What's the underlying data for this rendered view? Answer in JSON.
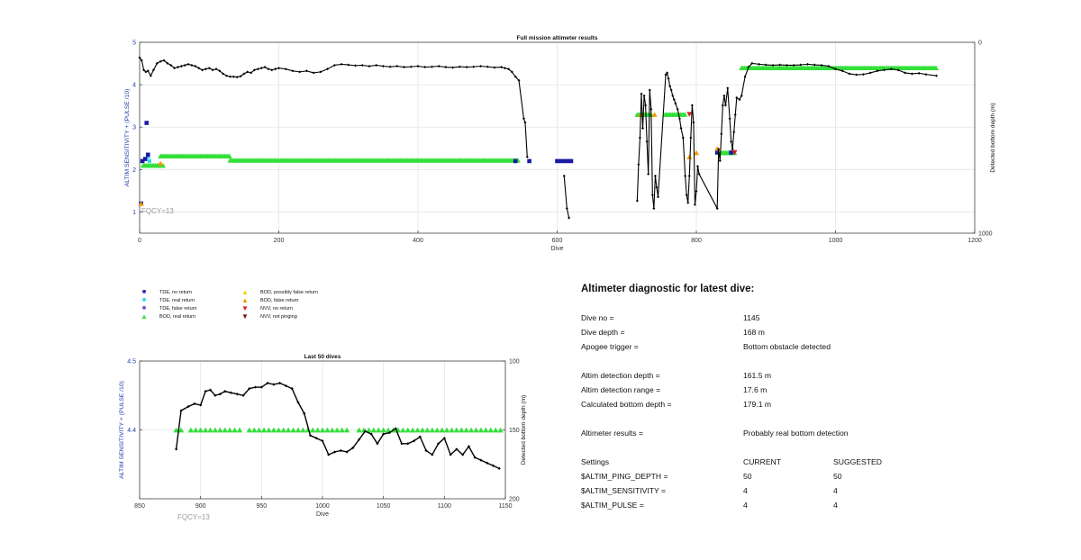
{
  "chart_data": [
    {
      "type": "scatter",
      "title": "Full mission altimeter results",
      "xlabel": "Dive",
      "ylabel": "ALTIM SENSITIVITY + (PULSE /10)",
      "y2label": "Detected bottom depth (m)",
      "xlim": [
        0,
        1200
      ],
      "ylim": [
        0.5,
        5
      ],
      "y2lim": [
        0,
        1000
      ],
      "y2_reversed": true,
      "xticks": [
        "0",
        "200",
        "400",
        "600",
        "800",
        "1000",
        "1200"
      ],
      "yticks": [
        "1",
        "2",
        "3",
        "4",
        "5"
      ],
      "y2ticks": [
        "0",
        "1000"
      ],
      "grid": true,
      "annotation": "FQCY=13",
      "depth_series": [
        [
          0,
          80
        ],
        [
          3,
          95
        ],
        [
          6,
          145
        ],
        [
          9,
          155
        ],
        [
          12,
          150
        ],
        [
          16,
          175
        ],
        [
          20,
          145
        ],
        [
          25,
          110
        ],
        [
          30,
          100
        ],
        [
          35,
          95
        ],
        [
          40,
          110
        ],
        [
          45,
          120
        ],
        [
          50,
          135
        ],
        [
          55,
          130
        ],
        [
          60,
          125
        ],
        [
          65,
          120
        ],
        [
          70,
          115
        ],
        [
          75,
          120
        ],
        [
          80,
          125
        ],
        [
          85,
          135
        ],
        [
          90,
          145
        ],
        [
          95,
          140
        ],
        [
          100,
          135
        ],
        [
          105,
          145
        ],
        [
          110,
          140
        ],
        [
          115,
          150
        ],
        [
          120,
          165
        ],
        [
          125,
          175
        ],
        [
          130,
          180
        ],
        [
          135,
          180
        ],
        [
          140,
          182
        ],
        [
          145,
          178
        ],
        [
          150,
          165
        ],
        [
          155,
          155
        ],
        [
          160,
          160
        ],
        [
          165,
          145
        ],
        [
          170,
          140
        ],
        [
          175,
          135
        ],
        [
          180,
          130
        ],
        [
          185,
          140
        ],
        [
          190,
          145
        ],
        [
          195,
          140
        ],
        [
          200,
          135
        ],
        [
          210,
          140
        ],
        [
          220,
          150
        ],
        [
          230,
          155
        ],
        [
          240,
          150
        ],
        [
          250,
          160
        ],
        [
          260,
          155
        ],
        [
          270,
          140
        ],
        [
          280,
          120
        ],
        [
          290,
          115
        ],
        [
          300,
          118
        ],
        [
          310,
          122
        ],
        [
          320,
          120
        ],
        [
          330,
          125
        ],
        [
          340,
          120
        ],
        [
          350,
          125
        ],
        [
          360,
          128
        ],
        [
          370,
          125
        ],
        [
          380,
          130
        ],
        [
          390,
          128
        ],
        [
          400,
          125
        ],
        [
          410,
          130
        ],
        [
          420,
          128
        ],
        [
          430,
          125
        ],
        [
          440,
          130
        ],
        [
          450,
          132
        ],
        [
          460,
          128
        ],
        [
          470,
          130
        ],
        [
          480,
          128
        ],
        [
          490,
          125
        ],
        [
          500,
          128
        ],
        [
          510,
          132
        ],
        [
          520,
          130
        ],
        [
          525,
          135
        ],
        [
          530,
          140
        ],
        [
          535,
          155
        ],
        [
          540,
          180
        ],
        [
          545,
          200
        ],
        [
          552,
          400
        ],
        [
          554,
          420
        ],
        [
          557,
          600
        ],
        [
          610,
          700
        ],
        [
          614,
          870
        ],
        [
          617,
          920
        ],
        [
          715,
          830
        ],
        [
          717,
          640
        ],
        [
          719,
          500
        ],
        [
          721,
          270
        ],
        [
          723,
          450
        ],
        [
          725,
          280
        ],
        [
          727,
          330
        ],
        [
          729,
          520
        ],
        [
          731,
          690
        ],
        [
          733,
          250
        ],
        [
          735,
          350
        ],
        [
          737,
          800
        ],
        [
          739,
          870
        ],
        [
          741,
          700
        ],
        [
          743,
          760
        ],
        [
          745,
          810
        ],
        [
          756,
          170
        ],
        [
          758,
          160
        ],
        [
          760,
          190
        ],
        [
          762,
          230
        ],
        [
          764,
          250
        ],
        [
          766,
          280
        ],
        [
          768,
          300
        ],
        [
          770,
          320
        ],
        [
          773,
          350
        ],
        [
          776,
          400
        ],
        [
          778,
          450
        ],
        [
          781,
          500
        ],
        [
          784,
          700
        ],
        [
          786,
          800
        ],
        [
          788,
          840
        ],
        [
          790,
          700
        ],
        [
          792,
          500
        ],
        [
          794,
          330
        ],
        [
          796,
          420
        ],
        [
          798,
          850
        ],
        [
          800,
          780
        ],
        [
          802,
          650
        ],
        [
          804,
          690
        ],
        [
          830,
          870
        ],
        [
          832,
          560
        ],
        [
          834,
          620
        ],
        [
          836,
          480
        ],
        [
          838,
          330
        ],
        [
          840,
          280
        ],
        [
          842,
          330
        ],
        [
          845,
          240
        ],
        [
          848,
          400
        ],
        [
          850,
          520
        ],
        [
          852,
          560
        ],
        [
          854,
          470
        ],
        [
          856,
          380
        ],
        [
          858,
          290
        ],
        [
          862,
          300
        ],
        [
          865,
          280
        ],
        [
          870,
          180
        ],
        [
          875,
          130
        ],
        [
          880,
          110
        ],
        [
          890,
          115
        ],
        [
          900,
          118
        ],
        [
          910,
          120
        ],
        [
          920,
          118
        ],
        [
          930,
          120
        ],
        [
          940,
          120
        ],
        [
          950,
          118
        ],
        [
          960,
          115
        ],
        [
          970,
          118
        ],
        [
          980,
          120
        ],
        [
          990,
          125
        ],
        [
          1000,
          140
        ],
        [
          1010,
          150
        ],
        [
          1020,
          165
        ],
        [
          1030,
          170
        ],
        [
          1040,
          168
        ],
        [
          1050,
          160
        ],
        [
          1060,
          150
        ],
        [
          1070,
          145
        ],
        [
          1080,
          140
        ],
        [
          1090,
          145
        ],
        [
          1100,
          160
        ],
        [
          1110,
          165
        ],
        [
          1120,
          162
        ],
        [
          1130,
          168
        ],
        [
          1145,
          175
        ]
      ],
      "markers": {
        "tde_no_return": [
          [
            2,
            1.2
          ],
          [
            4,
            2.2
          ],
          [
            8,
            2.25
          ],
          [
            10,
            3.1
          ],
          [
            12,
            2.35
          ],
          [
            540,
            2.2
          ],
          [
            560,
            2.2
          ],
          [
            600,
            2.2
          ],
          [
            605,
            2.2
          ],
          [
            610,
            2.2
          ],
          [
            615,
            2.2
          ],
          [
            620,
            2.2
          ],
          [
            830,
            2.4
          ],
          [
            850,
            2.4
          ]
        ],
        "tde_real_return": [
          [
            12,
            2.3
          ],
          [
            14,
            2.2
          ]
        ],
        "bod_real_return_bands": [
          {
            "x0": 5,
            "x1": 35,
            "y": 2.1
          },
          {
            "x0": 30,
            "x1": 130,
            "y": 2.32
          },
          {
            "x0": 130,
            "x1": 545,
            "y": 2.22
          },
          {
            "x0": 715,
            "x1": 735,
            "y": 3.3
          },
          {
            "x0": 755,
            "x1": 785,
            "y": 3.3
          },
          {
            "x0": 835,
            "x1": 855,
            "y": 2.4
          },
          {
            "x0": 865,
            "x1": 1145,
            "y": 4.4
          }
        ],
        "bod_false_return": [
          [
            2,
            1.2
          ],
          [
            30,
            2.15
          ],
          [
            720,
            3.3
          ],
          [
            740,
            3.3
          ],
          [
            790,
            2.3
          ],
          [
            800,
            2.4
          ],
          [
            830,
            2.5
          ]
        ],
        "nvv_no_return": [
          [
            790,
            3.3
          ],
          [
            855,
            2.4
          ]
        ]
      }
    },
    {
      "type": "scatter",
      "title": "Last 50 dives",
      "xlabel": "Dive",
      "ylabel": "ALTIM SENSITIVITY + (PULSE /10)",
      "y2label": "Detected bottom depth (m)",
      "xlim": [
        850,
        1150
      ],
      "ylim": [
        4.3,
        4.5
      ],
      "y2lim": [
        100,
        200
      ],
      "y2_reversed": true,
      "xticks": [
        "850",
        "900",
        "950",
        "1000",
        "1050",
        "1100",
        "1150"
      ],
      "yticks": [
        "4.4",
        "4.5"
      ],
      "y2ticks": [
        "100",
        "150",
        "200"
      ],
      "grid": true,
      "annotation": "FQCY=13",
      "depth_x": [
        880,
        884,
        890,
        895,
        900,
        904,
        908,
        912,
        916,
        920,
        925,
        930,
        935,
        940,
        945,
        950,
        955,
        960,
        965,
        970,
        975,
        980,
        985,
        990,
        995,
        1000,
        1005,
        1010,
        1015,
        1020,
        1025,
        1030,
        1035,
        1040,
        1045,
        1050,
        1055,
        1060,
        1065,
        1070,
        1075,
        1080,
        1085,
        1090,
        1095,
        1100,
        1105,
        1110,
        1115,
        1120,
        1125,
        1130,
        1135,
        1140,
        1145
      ],
      "depth_y": [
        164,
        136,
        133,
        131,
        132,
        122,
        121,
        125,
        124,
        122,
        123,
        124,
        125,
        120,
        119,
        119,
        116,
        117,
        116,
        118,
        120,
        130,
        138,
        154,
        156,
        158,
        168,
        166,
        165,
        166,
        163,
        157,
        151,
        153,
        160,
        153,
        152,
        149,
        160,
        160,
        158,
        155,
        165,
        168,
        160,
        156,
        168,
        164,
        168,
        162,
        170,
        172,
        174,
        176,
        178
      ],
      "bod_real_return_x": [
        880,
        884,
        892,
        896,
        900,
        904,
        908,
        912,
        916,
        920,
        924,
        928,
        932,
        940,
        944,
        948,
        952,
        956,
        960,
        964,
        968,
        972,
        976,
        980,
        984,
        988,
        992,
        996,
        1000,
        1004,
        1008,
        1012,
        1016,
        1020,
        1030,
        1034,
        1038,
        1042,
        1046,
        1050,
        1054,
        1058,
        1062,
        1066,
        1070,
        1074,
        1078,
        1082,
        1086,
        1090,
        1094,
        1098,
        1102,
        1106,
        1110,
        1114,
        1118,
        1122,
        1126,
        1130,
        1134,
        1138,
        1142,
        1146
      ],
      "bod_real_return_y": 4.4
    }
  ],
  "legend": [
    {
      "label": "TDE, no return",
      "symbol": "square",
      "color": "#1a1aa6"
    },
    {
      "label": "TDE, real return",
      "symbol": "square",
      "color": "#2fd3e6"
    },
    {
      "label": "TDE, false return",
      "symbol": "square",
      "color": "#7a3fc4"
    },
    {
      "label": "BOD, real return",
      "symbol": "triangle-up",
      "color": "#33e03a"
    },
    {
      "label": "BOD, possibly false return",
      "symbol": "triangle-up",
      "color": "#f1d400"
    },
    {
      "label": "BOD, false return",
      "symbol": "triangle-up",
      "color": "#f29a00"
    },
    {
      "label": "NVV, no return",
      "symbol": "triangle-down",
      "color": "#d62020"
    },
    {
      "label": "NVV, not pinging",
      "symbol": "triangle-down",
      "color": "#7a1010"
    }
  ],
  "diagnostic": {
    "title": "Altimeter diagnostic for latest dive:",
    "rows": [
      {
        "label": "Dive no =",
        "value": "1145"
      },
      {
        "label": "Dive depth =",
        "value": "168 m"
      },
      {
        "label": "Apogee trigger =",
        "value": "Bottom obstacle detected"
      },
      {
        "label": "Altim detection depth =",
        "value": "161.5 m"
      },
      {
        "label": "Altim detection range =",
        "value": "17.6 m"
      },
      {
        "label": "Calculated bottom depth =",
        "value": "179.1 m"
      },
      {
        "label": "Altimeter results =",
        "value": "Probably real bottom detection"
      }
    ],
    "settings": {
      "header": {
        "label": "Settings",
        "current": "CURRENT",
        "suggested": "SUGGESTED"
      },
      "rows": [
        {
          "label": "$ALTIM_PING_DEPTH =",
          "current": "50",
          "suggested": "50"
        },
        {
          "label": "$ALTIM_SENSITIVITY =",
          "current": "4",
          "suggested": "4"
        },
        {
          "label": "$ALTIM_PULSE =",
          "current": "4",
          "suggested": "4"
        }
      ]
    }
  },
  "colors": {
    "axis": "#444444",
    "grid": "#e4e4e4",
    "left_axis_label": "#1f3fae",
    "depth_line": "#000000",
    "annotation": "#9a9a9a"
  }
}
